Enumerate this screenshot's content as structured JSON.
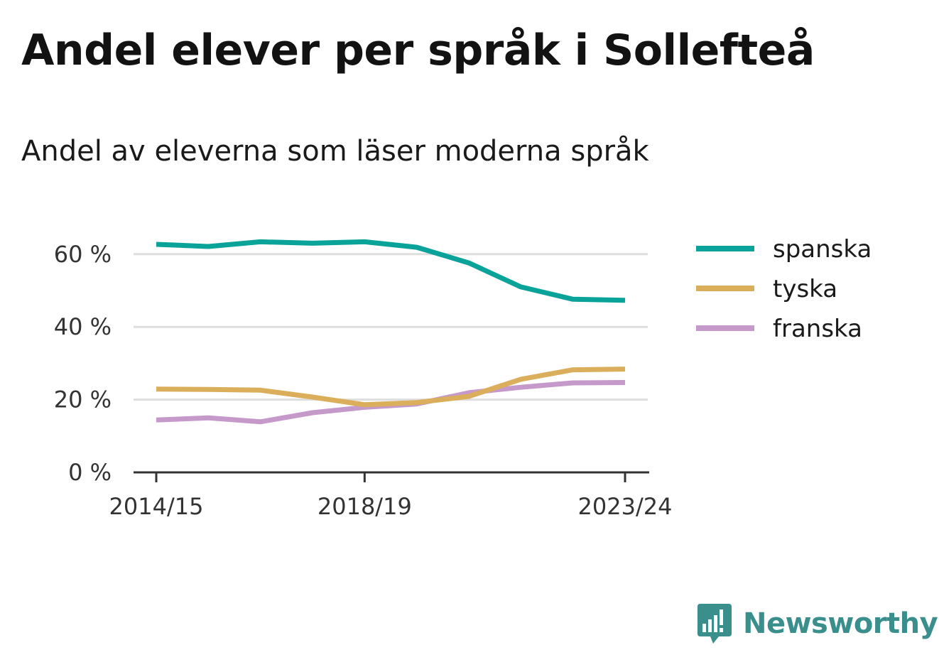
{
  "title": "Andel elever per språk i Sollefteå",
  "subtitle": "Andel av eleverna som läser moderna språk",
  "brand": {
    "name": "Newsworthy",
    "icon": "newsworthy-logo-icon",
    "color": "#3a8f8c"
  },
  "chart_data": {
    "type": "line",
    "x": [
      "2014/15",
      "2015/16",
      "2016/17",
      "2017/18",
      "2018/19",
      "2019/20",
      "2020/21",
      "2021/22",
      "2022/23",
      "2023/24"
    ],
    "x_tick_labels": [
      "2014/15",
      "2018/19",
      "2023/24"
    ],
    "y_ticks": [
      0,
      20,
      40,
      60
    ],
    "y_tick_labels": [
      "0 %",
      "20 %",
      "40 %",
      "60 %"
    ],
    "ylim": [
      0,
      70
    ],
    "grid": true,
    "legend_position": "right",
    "series": [
      {
        "name": "spanska",
        "color": "#0aa39a",
        "values": [
          62.7,
          62.1,
          63.4,
          63.0,
          63.4,
          61.9,
          57.6,
          51.0,
          47.6,
          47.3
        ]
      },
      {
        "name": "tyska",
        "color": "#dbae5b",
        "values": [
          22.9,
          22.8,
          22.6,
          20.7,
          18.6,
          19.2,
          20.9,
          25.6,
          28.2,
          28.4
        ]
      },
      {
        "name": "franska",
        "color": "#c59acb",
        "values": [
          14.4,
          15.0,
          13.9,
          16.4,
          17.9,
          18.8,
          21.9,
          23.4,
          24.6,
          24.7
        ]
      }
    ]
  }
}
